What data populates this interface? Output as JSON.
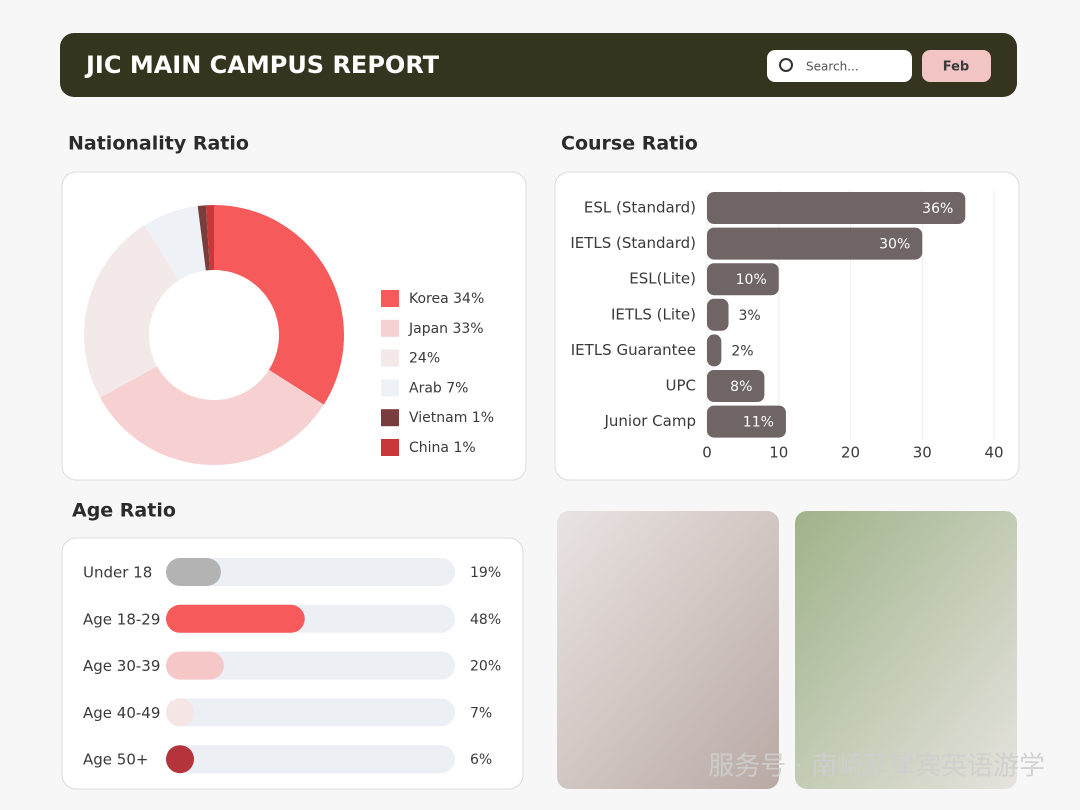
{
  "header": {
    "title": "JIC MAIN CAMPUS REPORT",
    "search_placeholder": "Search...",
    "button": "Feb"
  },
  "watermark": "服务号 · 南崎菲律宾英语游学",
  "chart_data": [
    {
      "type": "donut",
      "title": "Nationality Ratio",
      "categories": [
        "Korea 34%",
        "Japan 33%",
        "24%",
        "Arab 7%",
        "Vietnam 1%",
        "China 1%"
      ],
      "values": [
        34,
        33,
        24,
        7,
        1,
        1
      ],
      "colors": [
        "#f65a5a",
        "#f7d0d1",
        "#f3e9e9",
        "#eef1f6",
        "#7a3c3c",
        "#c8383b"
      ],
      "legend": "right"
    },
    {
      "type": "hbar",
      "title": "Course Ratio",
      "categories": [
        "ESL (Standard)",
        "IETLS (Standard)",
        "ESL(Lite)",
        "IETLS (Lite)",
        "IETLS Guarantee",
        "UPC",
        "Junior Camp"
      ],
      "values": [
        36,
        30,
        10,
        3,
        2,
        8,
        11
      ],
      "value_labels": [
        "36%",
        "30%",
        "10%",
        "3%",
        "2%",
        "8%",
        "11%"
      ],
      "color": "#6e6564",
      "xlim": [
        0,
        40
      ],
      "xticks": [
        0,
        10,
        20,
        30,
        40
      ],
      "grid": true
    },
    {
      "type": "progress",
      "title": "Age Ratio",
      "categories": [
        "Under 18",
        "Age 18-29",
        "Age 30-39",
        "Age 40-49",
        "Age 50+"
      ],
      "values": [
        19,
        48,
        20,
        7,
        6
      ],
      "value_labels": [
        "19%",
        "48%",
        "20%",
        "7%",
        "6%"
      ],
      "colors": [
        "#b3b3b3",
        "#f65a5a",
        "#f6c7c7",
        "#f5e5e5",
        "#b5333a"
      ],
      "xlim": [
        0,
        100
      ]
    }
  ]
}
